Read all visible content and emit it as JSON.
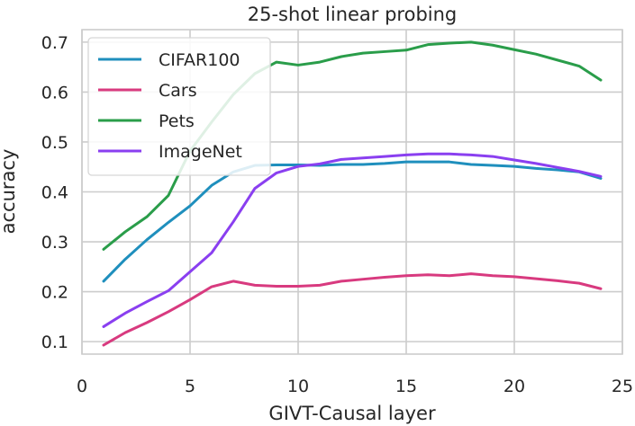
{
  "chart_data": {
    "type": "line",
    "title": "25-shot linear probing",
    "xlabel": "GIVT-Causal layer",
    "ylabel": "accuracy",
    "xlim": [
      0,
      25
    ],
    "ylim": [
      0.075,
      0.725
    ],
    "xticks": [
      0,
      5,
      10,
      15,
      20,
      25
    ],
    "yticks": [
      0.1,
      0.2,
      0.3,
      0.4,
      0.5,
      0.6,
      0.7
    ],
    "ytick_labels": [
      "0.1",
      "0.2",
      "0.3",
      "0.4",
      "0.5",
      "0.6",
      "0.7"
    ],
    "grid": true,
    "legend_position": "upper-left",
    "x": [
      1,
      2,
      3,
      4,
      5,
      6,
      7,
      8,
      9,
      10,
      11,
      12,
      13,
      14,
      15,
      16,
      17,
      18,
      19,
      20,
      21,
      22,
      23,
      24
    ],
    "series": [
      {
        "name": "CIFAR100",
        "color": "#1f8fbd",
        "values": [
          0.221,
          0.265,
          0.304,
          0.339,
          0.372,
          0.413,
          0.44,
          0.453,
          0.454,
          0.454,
          0.453,
          0.455,
          0.455,
          0.457,
          0.46,
          0.46,
          0.46,
          0.455,
          0.453,
          0.451,
          0.447,
          0.444,
          0.44,
          0.427
        ]
      },
      {
        "name": "Cars",
        "color": "#d83a7f",
        "values": [
          0.093,
          0.118,
          0.138,
          0.16,
          0.184,
          0.21,
          0.221,
          0.213,
          0.211,
          0.211,
          0.213,
          0.221,
          0.225,
          0.229,
          0.232,
          0.234,
          0.232,
          0.236,
          0.232,
          0.23,
          0.226,
          0.222,
          0.217,
          0.206
        ]
      },
      {
        "name": "Pets",
        "color": "#2a9d4a",
        "values": [
          0.285,
          0.32,
          0.35,
          0.393,
          0.482,
          0.54,
          0.595,
          0.637,
          0.66,
          0.654,
          0.66,
          0.671,
          0.678,
          0.681,
          0.684,
          0.695,
          0.698,
          0.7,
          0.694,
          0.685,
          0.676,
          0.664,
          0.652,
          0.624
        ]
      },
      {
        "name": "ImageNet",
        "color": "#8a3ff0",
        "values": [
          0.13,
          0.157,
          0.18,
          0.202,
          0.24,
          0.278,
          0.34,
          0.407,
          0.438,
          0.451,
          0.456,
          0.465,
          0.468,
          0.471,
          0.474,
          0.476,
          0.476,
          0.474,
          0.471,
          0.464,
          0.457,
          0.449,
          0.441,
          0.431
        ]
      }
    ]
  }
}
